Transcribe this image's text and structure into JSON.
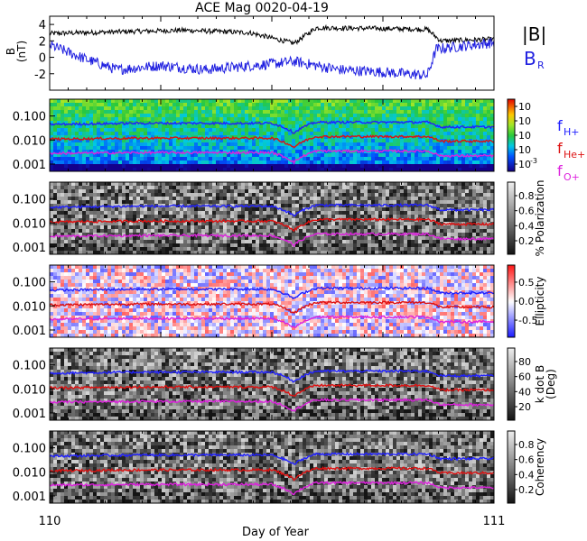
{
  "figure": {
    "title": "ACE Mag 0020-04-19",
    "xlabel": "Day of Year",
    "x_ticks": [
      "110",
      "111"
    ]
  },
  "chart_data": [
    {
      "type": "line",
      "title": "ACE Mag 0020-04-19",
      "ylabel": "B (nT)",
      "ylabel_lines": [
        "B",
        "(nT)"
      ],
      "xlim": [
        110,
        111
      ],
      "ylim": [
        -4,
        5
      ],
      "y_ticks": [
        "-2",
        "0",
        "2",
        "4"
      ],
      "series": [
        {
          "name": "|B|",
          "color": "#000000",
          "segments": [
            [
              110.0,
              2.9
            ],
            [
              110.3,
              3.3
            ],
            [
              110.45,
              3.0
            ],
            [
              110.55,
              1.7
            ],
            [
              110.6,
              3.6
            ],
            [
              110.75,
              3.5
            ],
            [
              110.85,
              3.4
            ],
            [
              110.88,
              2.0
            ],
            [
              111.0,
              2.2
            ]
          ]
        },
        {
          "name": "B",
          "sub": "R",
          "color": "#1f1fe0",
          "segments": [
            [
              110.0,
              1.5
            ],
            [
              110.08,
              -0.2
            ],
            [
              110.15,
              -1.5
            ],
            [
              110.25,
              -1.0
            ],
            [
              110.35,
              -1.5
            ],
            [
              110.5,
              -0.8
            ],
            [
              110.55,
              -0.5
            ],
            [
              110.65,
              -1.5
            ],
            [
              110.75,
              -1.8
            ],
            [
              110.85,
              -2.2
            ],
            [
              110.87,
              1.0
            ],
            [
              111.0,
              1.8
            ]
          ]
        }
      ]
    },
    {
      "type": "heatmap",
      "ylim": [
        0.0005,
        0.5
      ],
      "y_log": true,
      "y_ticks": [
        "0.001",
        "0.010",
        "0.100"
      ],
      "palette": "rainbow",
      "colorbar_label": "",
      "colorbar_ticks": [
        "10",
        "10",
        "10",
        "10",
        "10"
      ],
      "colorbar_exponents": [
        "-3",
        "",
        "",
        "",
        ""
      ],
      "series": [
        {
          "name": "f",
          "sub": "H+",
          "color": "#2020ff"
        },
        {
          "name": "f",
          "sub": "He+",
          "color": "#dd1010"
        },
        {
          "name": "f",
          "sub": "O+",
          "color": "#dd22dd"
        }
      ]
    },
    {
      "type": "heatmap",
      "ylim": [
        0.0005,
        0.5
      ],
      "y_log": true,
      "y_ticks": [
        "0.001",
        "0.010",
        "0.100"
      ],
      "palette": "gray",
      "colorbar_label": "% Polarization",
      "colorbar_ticks": [
        "0.2",
        "0.4",
        "0.6",
        "0.8"
      ]
    },
    {
      "type": "heatmap",
      "ylim": [
        0.0005,
        0.5
      ],
      "y_log": true,
      "y_ticks": [
        "0.001",
        "0.010",
        "0.100"
      ],
      "palette": "bwr",
      "colorbar_label": "Ellipticity",
      "colorbar_ticks": [
        "-0.5",
        "0.0",
        "0.5"
      ]
    },
    {
      "type": "heatmap",
      "ylim": [
        0.0005,
        0.5
      ],
      "y_log": true,
      "y_ticks": [
        "0.001",
        "0.010",
        "0.100"
      ],
      "palette": "gray",
      "colorbar_label": "k dot B (Deg)",
      "colorbar_label_lines": [
        "k dot B",
        "(Deg)"
      ],
      "colorbar_ticks": [
        "20",
        "40",
        "60",
        "80"
      ]
    },
    {
      "type": "heatmap",
      "ylim": [
        0.0005,
        0.5
      ],
      "y_log": true,
      "y_ticks": [
        "0.001",
        "0.010",
        "0.100"
      ],
      "palette": "gray",
      "colorbar_label": "Coherency",
      "colorbar_ticks": [
        "0.2",
        "0.4",
        "0.6",
        "0.8"
      ]
    }
  ],
  "gyro_lines": {
    "H+": [
      [
        110.0,
        0.045
      ],
      [
        110.2,
        0.05
      ],
      [
        110.5,
        0.05
      ],
      [
        110.55,
        0.02
      ],
      [
        110.6,
        0.055
      ],
      [
        110.85,
        0.055
      ],
      [
        110.88,
        0.035
      ],
      [
        111.0,
        0.035
      ]
    ],
    "He+": [
      [
        110.0,
        0.011
      ],
      [
        110.2,
        0.012
      ],
      [
        110.5,
        0.012
      ],
      [
        110.55,
        0.005
      ],
      [
        110.6,
        0.014
      ],
      [
        110.85,
        0.014
      ],
      [
        110.88,
        0.009
      ],
      [
        111.0,
        0.009
      ]
    ],
    "O+": [
      [
        110.0,
        0.0028
      ],
      [
        110.2,
        0.003
      ],
      [
        110.5,
        0.003
      ],
      [
        110.55,
        0.0012
      ],
      [
        110.6,
        0.0035
      ],
      [
        110.85,
        0.0035
      ],
      [
        110.88,
        0.0022
      ],
      [
        111.0,
        0.0022
      ]
    ]
  },
  "colors": {
    "axis": "#000000",
    "hplus": "#2020ff",
    "heplus": "#dd1010",
    "oplus": "#dd22dd",
    "br": "#1f1fe0"
  }
}
